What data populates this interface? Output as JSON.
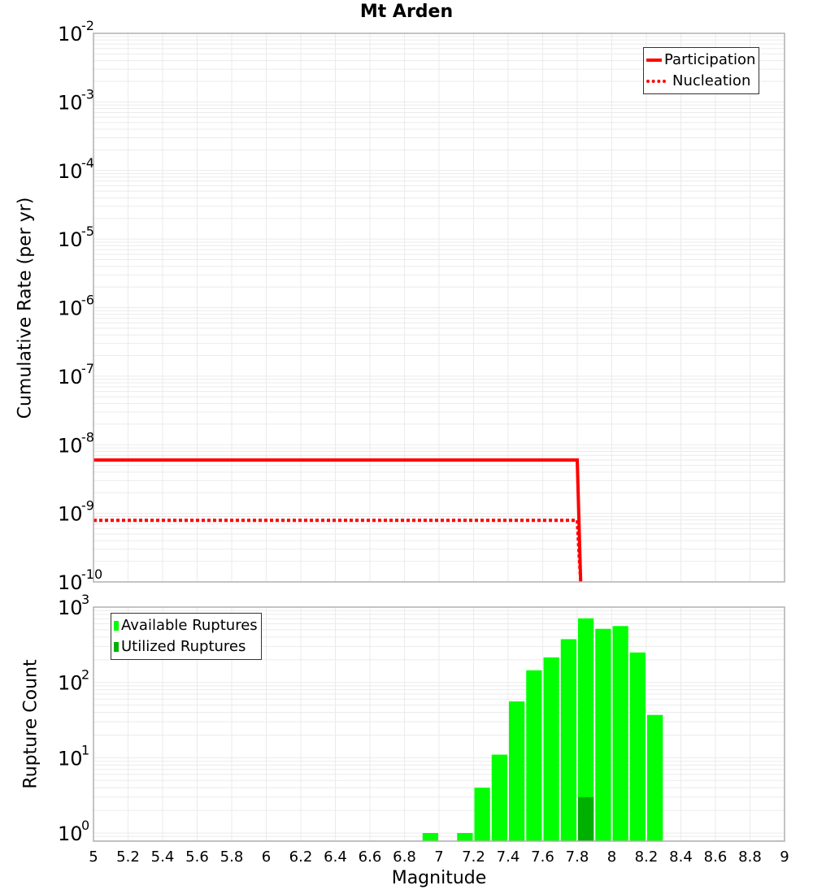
{
  "title": "Mt Arden",
  "top_plot": {
    "ylabel": "Cumulative Rate (per yr)",
    "legend": [
      {
        "label": "Participation",
        "style": "solid",
        "color": "#ff0000"
      },
      {
        "label": "Nucleation",
        "style": "dotted",
        "color": "#ff0000"
      }
    ]
  },
  "bottom_plot": {
    "ylabel": "Rupture Count",
    "xlabel": "Magnitude",
    "legend": [
      {
        "label": "Available Ruptures",
        "color": "#00ff00"
      },
      {
        "label": "Utilized Ruptures",
        "color": "#00b000"
      }
    ]
  },
  "chart_data": [
    {
      "type": "line",
      "title": "Mt Arden",
      "xlabel": "Magnitude",
      "ylabel": "Cumulative Rate (per yr)",
      "xlim": [
        5,
        9
      ],
      "ylim": [
        1e-10,
        0.01
      ],
      "yscale": "log",
      "y_tick_exponents": [
        -2,
        -3,
        -4,
        -5,
        -6,
        -7,
        -8,
        -9,
        -10
      ],
      "x_ticks": [
        "5",
        "5.2",
        "5.4",
        "5.6",
        "5.8",
        "6",
        "6.2",
        "6.4",
        "6.6",
        "6.8",
        "7",
        "7.2",
        "7.4",
        "7.6",
        "7.8",
        "8",
        "8.2",
        "8.4",
        "8.6",
        "8.8",
        "9"
      ],
      "grid": true,
      "legend_position": "top-right",
      "series": [
        {
          "name": "Participation",
          "style": "solid",
          "color": "#ff0000",
          "x": [
            5.0,
            7.8,
            7.82
          ],
          "y": [
            6e-09,
            6e-09,
            1e-10
          ]
        },
        {
          "name": "Nucleation",
          "style": "dotted",
          "color": "#ff0000",
          "x": [
            5.0,
            7.8,
            7.82
          ],
          "y": [
            7.9e-10,
            7.9e-10,
            1e-10
          ]
        }
      ]
    },
    {
      "type": "bar",
      "xlabel": "Magnitude",
      "ylabel": "Rupture Count",
      "xlim": [
        5,
        9
      ],
      "ylim": [
        0.78,
        1000
      ],
      "yscale": "log",
      "y_tick_exponents": [
        3,
        2,
        1,
        0
      ],
      "grid": true,
      "legend_position": "top-left",
      "bin_width": 0.1,
      "series": [
        {
          "name": "Available Ruptures",
          "color": "#00ff00",
          "x": [
            6.95,
            7.15,
            7.25,
            7.35,
            7.45,
            7.55,
            7.65,
            7.75,
            7.85,
            7.95,
            8.05,
            8.15,
            8.25
          ],
          "values": [
            1,
            1,
            4,
            11,
            56,
            145,
            215,
            375,
            710,
            515,
            560,
            250,
            37
          ]
        },
        {
          "name": "Utilized Ruptures",
          "color": "#00b000",
          "x": [
            7.85
          ],
          "values": [
            3
          ]
        }
      ]
    }
  ]
}
